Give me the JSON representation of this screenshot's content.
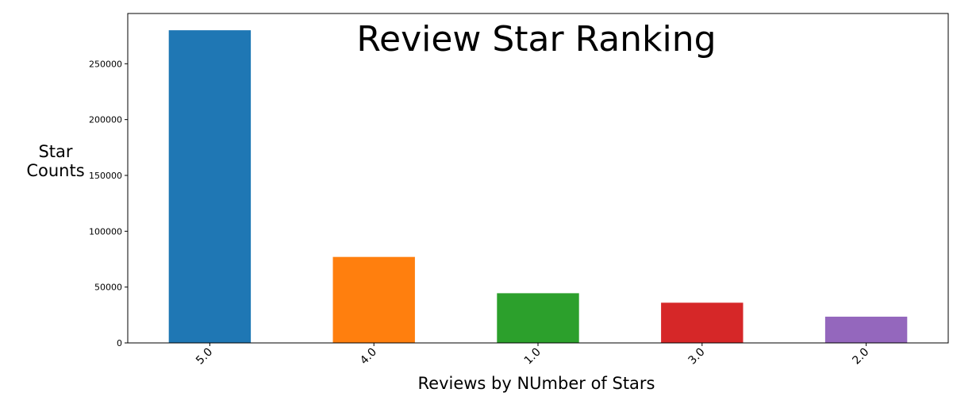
{
  "chart_data": {
    "type": "bar",
    "title": "Review Star Ranking",
    "xlabel": "Reviews by NUmber of Stars",
    "ylabel": "Star\nCounts",
    "categories": [
      "5.0",
      "4.0",
      "1.0",
      "3.0",
      "2.0"
    ],
    "values": [
      280000,
      77000,
      44500,
      36000,
      23500
    ],
    "colors": [
      "#1f77b4",
      "#ff7f0e",
      "#2ca02c",
      "#d62728",
      "#9467bd"
    ],
    "ylim": [
      0,
      295000
    ],
    "yticks": [
      0,
      50000,
      100000,
      150000,
      200000,
      250000
    ],
    "ytick_labels": [
      "0",
      "50000",
      "100000",
      "150000",
      "200000",
      "250000"
    ],
    "grid": false,
    "legend": "none"
  }
}
